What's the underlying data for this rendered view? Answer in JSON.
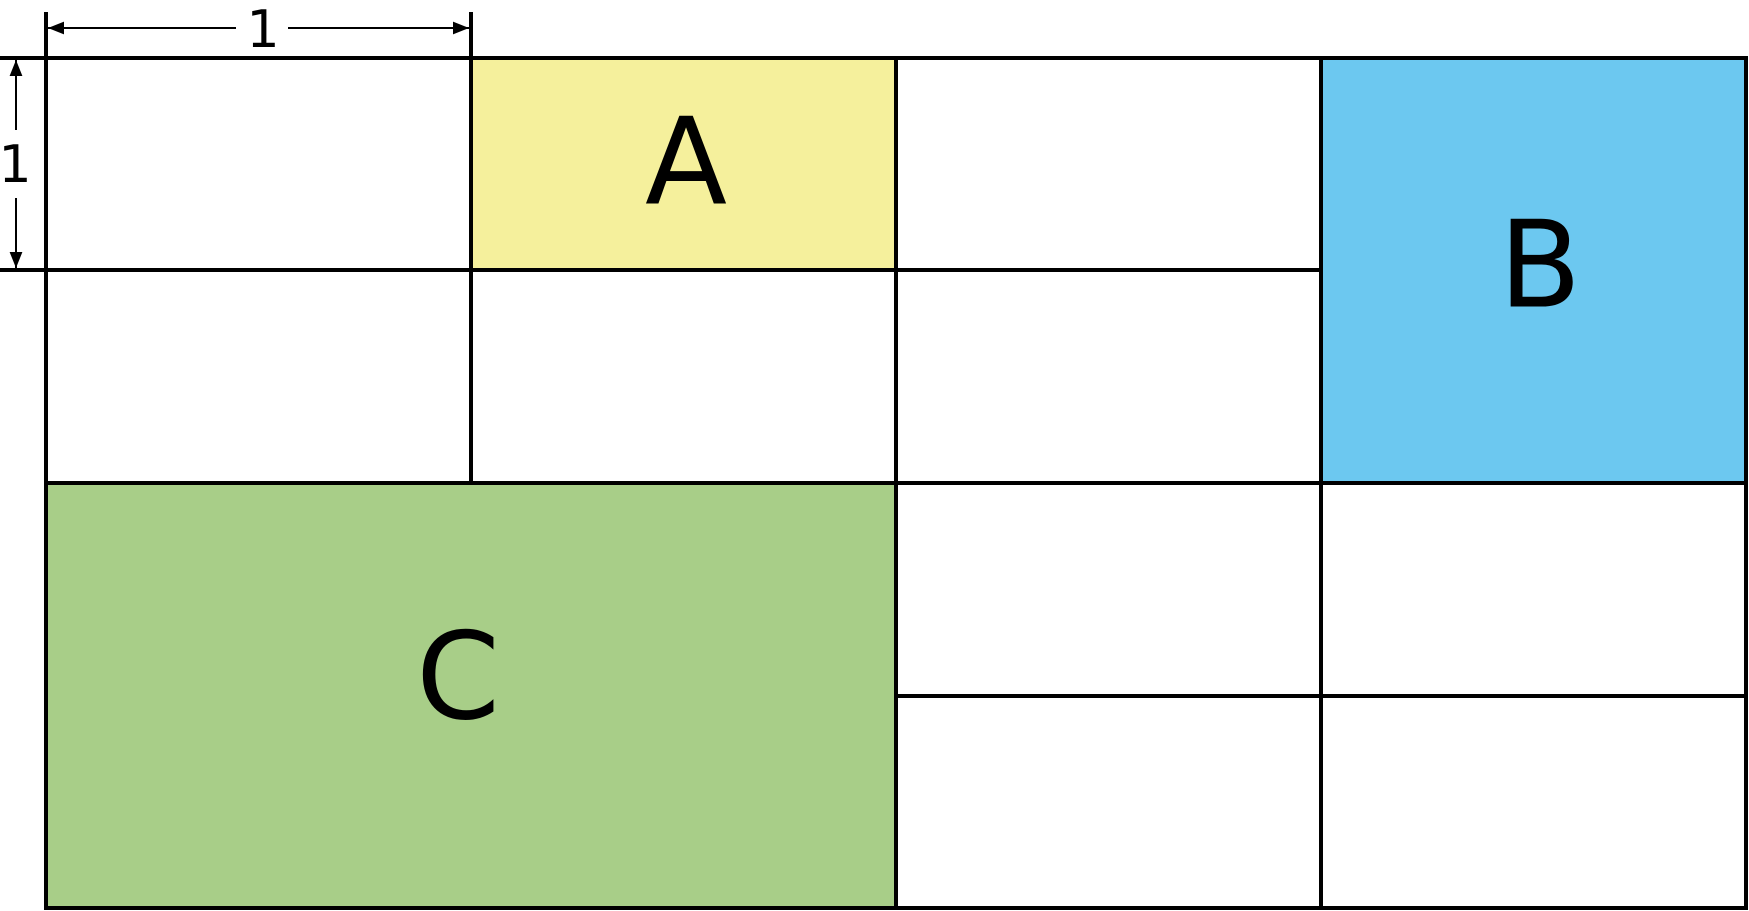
{
  "dimensions": {
    "width_label": "1",
    "height_label": "1"
  },
  "regions": [
    {
      "label": "A",
      "color": "#f5f09c"
    },
    {
      "label": "B",
      "color": "#6cc8f0"
    },
    {
      "label": "C",
      "color": "#a8ce88"
    }
  ],
  "line_color": "#000000"
}
